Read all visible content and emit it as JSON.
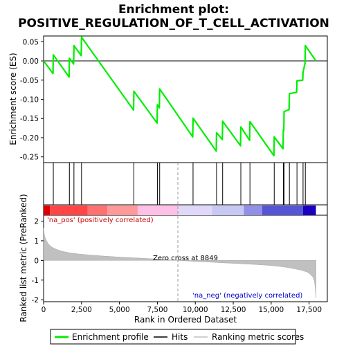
{
  "chart_data": {
    "type": "line",
    "title_line1": "Enrichment plot:",
    "title_line2": "POSITIVE_REGULATION_OF_T_CELL_ACTIVATION",
    "xlabel": "Rank in Ordered Dataset",
    "ylabel_top": "Enrichment score (ES)",
    "ylabel_bottom": "Ranked list metric (PreRanked)",
    "x_ticks": [
      "0",
      "2,500",
      "5,000",
      "7,500",
      "10,000",
      "12,500",
      "15,000",
      "17,500"
    ],
    "x_tick_values": [
      0,
      2500,
      5000,
      7500,
      10000,
      12500,
      15000,
      17500
    ],
    "es_ticks": [
      "0.05",
      "0.00",
      "-0.05",
      "-0.10",
      "-0.15",
      "-0.20",
      "-0.25"
    ],
    "es_tick_values": [
      0.05,
      0.0,
      -0.05,
      -0.1,
      -0.15,
      -0.2,
      -0.25
    ],
    "es_ylim": [
      -0.265,
      0.065
    ],
    "metric_ticks": [
      "2",
      "1",
      "0",
      "-1",
      "-2"
    ],
    "metric_tick_values": [
      2,
      1,
      0,
      -1,
      -2
    ],
    "metric_ylim": [
      -2.1,
      2.3
    ],
    "xlim": [
      0,
      18700
    ],
    "n_genes": 17950,
    "zero_cross": 8849,
    "zero_cross_label": "Zero cross at 8849",
    "pos_label": "'na_pos' (positively correlated)",
    "neg_label": "'na_neg' (negatively correlated)",
    "hits": [
      640,
      1700,
      2000,
      2500,
      5950,
      7500,
      7650,
      9850,
      11400,
      11800,
      13000,
      13600,
      15200,
      15800,
      15850,
      16200,
      16700,
      17100,
      17250
    ],
    "es_profile": {
      "x": [
        0,
        620,
        640,
        1680,
        1700,
        1980,
        2000,
        2480,
        2500,
        5930,
        5950,
        7480,
        7500,
        7630,
        7650,
        9830,
        9850,
        11380,
        11400,
        11780,
        11800,
        12980,
        13000,
        13580,
        13600,
        15180,
        15200,
        15780,
        15800,
        15830,
        15850,
        16180,
        16200,
        16680,
        16700,
        17080,
        17100,
        17230,
        17250,
        17950
      ],
      "y": [
        0.0,
        -0.033,
        0.016,
        -0.042,
        0.007,
        -0.008,
        0.04,
        0.014,
        0.062,
        -0.128,
        -0.079,
        -0.162,
        -0.114,
        -0.122,
        -0.073,
        -0.198,
        -0.149,
        -0.235,
        -0.187,
        -0.205,
        -0.157,
        -0.221,
        -0.172,
        -0.207,
        -0.158,
        -0.247,
        -0.198,
        -0.229,
        -0.181,
        -0.181,
        -0.132,
        -0.127,
        -0.085,
        -0.082,
        -0.052,
        -0.05,
        -0.03,
        -0.006,
        0.04,
        0.0
      ]
    },
    "metric_profile": {
      "x": [
        0,
        50,
        150,
        300,
        500,
        800,
        1200,
        1700,
        2300,
        3000,
        4000,
        5000,
        6000,
        7000,
        8000,
        8849,
        9800,
        10800,
        11800,
        12800,
        13800,
        14800,
        15500,
        16000,
        16500,
        17000,
        17400,
        17600,
        17750,
        17850,
        17920,
        17950
      ],
      "y": [
        1.65,
        1.3,
        1.05,
        0.85,
        0.7,
        0.58,
        0.47,
        0.39,
        0.33,
        0.28,
        0.22,
        0.17,
        0.13,
        0.09,
        0.05,
        0.0,
        -0.04,
        -0.08,
        -0.12,
        -0.16,
        -0.2,
        -0.25,
        -0.3,
        -0.35,
        -0.42,
        -0.5,
        -0.6,
        -0.72,
        -0.85,
        -1.05,
        -1.5,
        -1.9
      ]
    },
    "heat_colors": [
      "#dd0000",
      "#ff4545",
      "#ff7070",
      "#ff9999",
      "#ffc0e8",
      "#e0d8f8",
      "#c8c8f4",
      "#9090e8",
      "#5555d6",
      "#1a00c0"
    ],
    "heat_breaks": [
      0,
      420,
      2900,
      4200,
      6200,
      8849,
      11100,
      13200,
      14400,
      17100,
      17950
    ],
    "series": [
      {
        "name": "Enrichment profile",
        "color": "#00ee00"
      },
      {
        "name": "Hits",
        "color": "#000000"
      },
      {
        "name": "Ranking metric scores",
        "color": "#c0c0c0"
      }
    ]
  }
}
